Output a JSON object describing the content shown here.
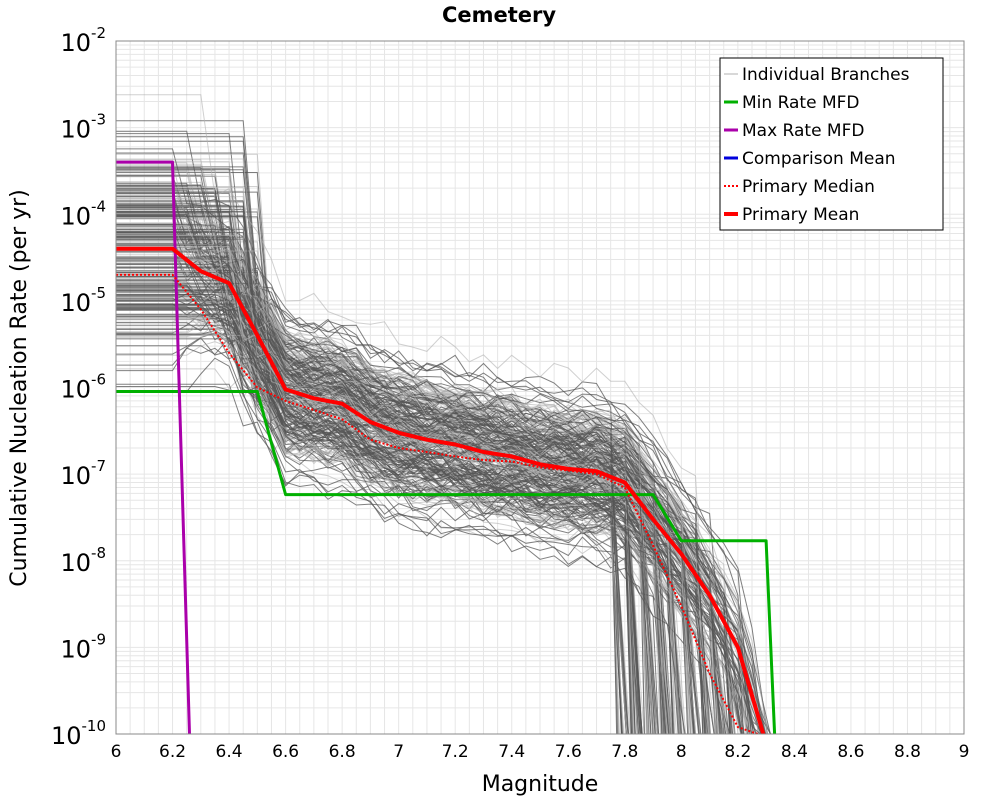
{
  "chart_data": {
    "type": "line",
    "title": "Cemetery",
    "xlabel": "Magnitude",
    "ylabel": "Cumulative Nucleation Rate (per yr)",
    "xlim": [
      6,
      9
    ],
    "ylim": [
      1e-10,
      0.01
    ],
    "yscale": "log",
    "grid": true,
    "legend_position": "top-right",
    "x_ticks": [
      "6",
      "6.2",
      "6.4",
      "6.6",
      "6.8",
      "7",
      "7.2",
      "7.4",
      "7.6",
      "7.8",
      "8",
      "8.2",
      "8.4",
      "8.6",
      "8.8",
      "9"
    ],
    "y_ticks": [
      {
        "base": "10",
        "exp": "-2",
        "value": 0.01
      },
      {
        "base": "10",
        "exp": "-3",
        "value": 0.001
      },
      {
        "base": "10",
        "exp": "-4",
        "value": 0.0001
      },
      {
        "base": "10",
        "exp": "-5",
        "value": 1e-05
      },
      {
        "base": "10",
        "exp": "-6",
        "value": 1e-06
      },
      {
        "base": "10",
        "exp": "-7",
        "value": 1e-07
      },
      {
        "base": "10",
        "exp": "-8",
        "value": 1e-08
      },
      {
        "base": "10",
        "exp": "-9",
        "value": 1e-09
      },
      {
        "base": "10",
        "exp": "-10",
        "value": 1e-10
      }
    ],
    "series": [
      {
        "name": "Individual Branches",
        "color": "#555555",
        "style": "thin",
        "note_count": 300
      },
      {
        "name": "Min Rate MFD",
        "color": "#00b000",
        "style": "solid",
        "x": [
          6.0,
          6.5,
          6.6,
          7.9,
          8.0,
          8.3,
          8.33
        ],
        "y": [
          9e-07,
          9e-07,
          5.8e-08,
          5.8e-08,
          1.7e-08,
          1.7e-08,
          1e-10
        ]
      },
      {
        "name": "Max Rate MFD",
        "color": "#aa00aa",
        "style": "solid",
        "x": [
          6.0,
          6.2,
          6.26
        ],
        "y": [
          0.0004,
          0.0004,
          1e-10
        ]
      },
      {
        "name": "Comparison Mean",
        "color": "#0000dd",
        "style": "solid",
        "x": [],
        "y": []
      },
      {
        "name": "Primary Median",
        "color": "#ff0000",
        "style": "dotted",
        "x": [
          6.0,
          6.2,
          6.3,
          6.4,
          6.5,
          6.6,
          6.7,
          6.8,
          6.9,
          7.0,
          7.1,
          7.2,
          7.3,
          7.4,
          7.5,
          7.6,
          7.7,
          7.8,
          7.9,
          8.0,
          8.1,
          8.2,
          8.27
        ],
        "y": [
          2e-05,
          2e-05,
          8e-06,
          2.5e-06,
          1e-06,
          7e-07,
          5.5e-07,
          4.3e-07,
          2.5e-07,
          2e-07,
          1.8e-07,
          1.6e-07,
          1.45e-07,
          1.4e-07,
          1.2e-07,
          1.1e-07,
          1e-07,
          7e-08,
          1.5e-08,
          3e-09,
          5e-10,
          1.2e-10,
          1e-10
        ]
      },
      {
        "name": "Primary Mean",
        "color": "#ff0000",
        "style": "thick",
        "x": [
          6.0,
          6.2,
          6.3,
          6.4,
          6.5,
          6.6,
          6.7,
          6.8,
          6.9,
          7.0,
          7.1,
          7.2,
          7.3,
          7.4,
          7.5,
          7.6,
          7.7,
          7.8,
          7.9,
          8.0,
          8.1,
          8.2,
          8.29
        ],
        "y": [
          4e-05,
          4e-05,
          2.2e-05,
          1.6e-05,
          4e-06,
          9.5e-07,
          7.5e-07,
          6.5e-07,
          4e-07,
          3e-07,
          2.5e-07,
          2.2e-07,
          1.8e-07,
          1.6e-07,
          1.3e-07,
          1.15e-07,
          1.08e-07,
          8e-08,
          3e-08,
          1.2e-08,
          4e-09,
          1e-09,
          1e-10
        ]
      }
    ]
  }
}
